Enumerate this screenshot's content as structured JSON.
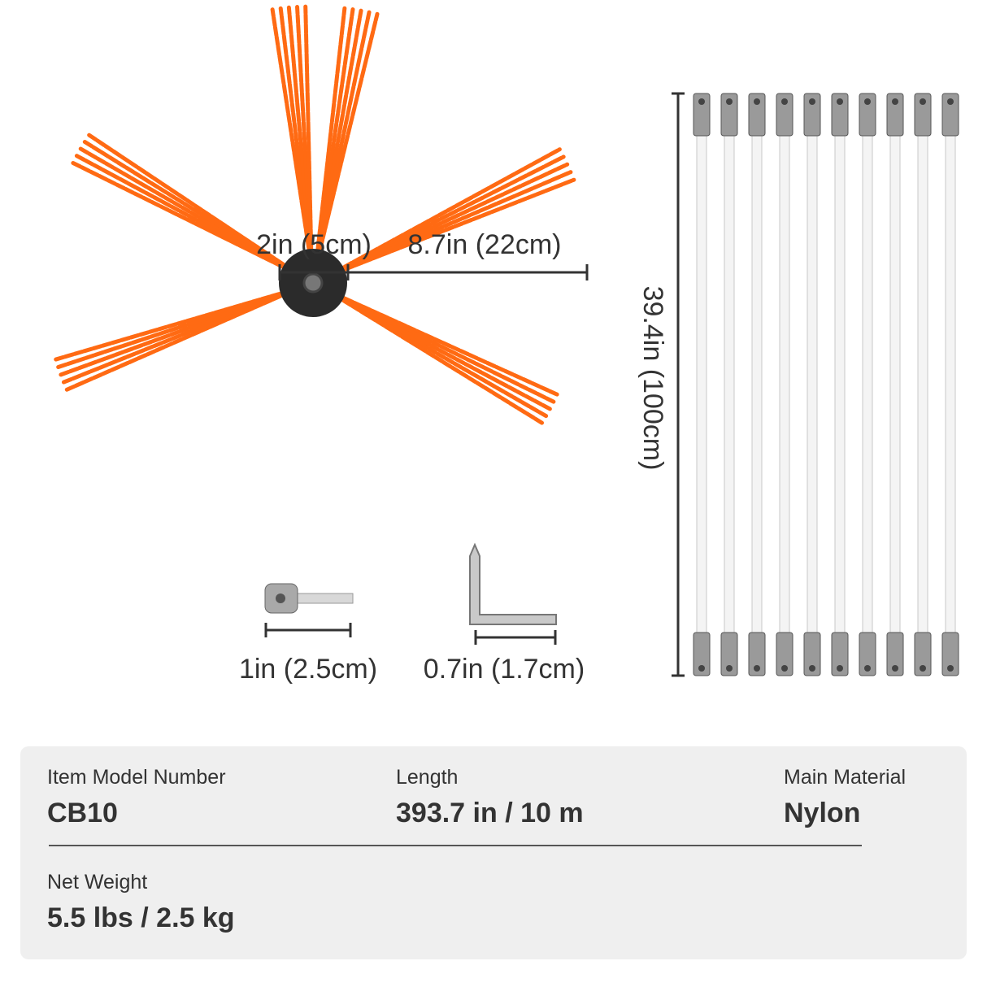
{
  "dimensions": {
    "brush_diameter": "2in (5cm)",
    "bristle_length": "8.7in (22cm)",
    "rod_length": "39.4in (100cm)",
    "adapter_length": "1in (2.5cm)",
    "wrench_size": "0.7in (1.7cm)"
  },
  "specs": [
    {
      "label": "Item Model Number",
      "value": "CB10"
    },
    {
      "label": "Length",
      "value": "393.7 in / 10 m"
    },
    {
      "label": "Main Material",
      "value": "Nylon"
    },
    {
      "label": "Net Weight",
      "value": "5.5 lbs / 2.5 kg"
    }
  ]
}
